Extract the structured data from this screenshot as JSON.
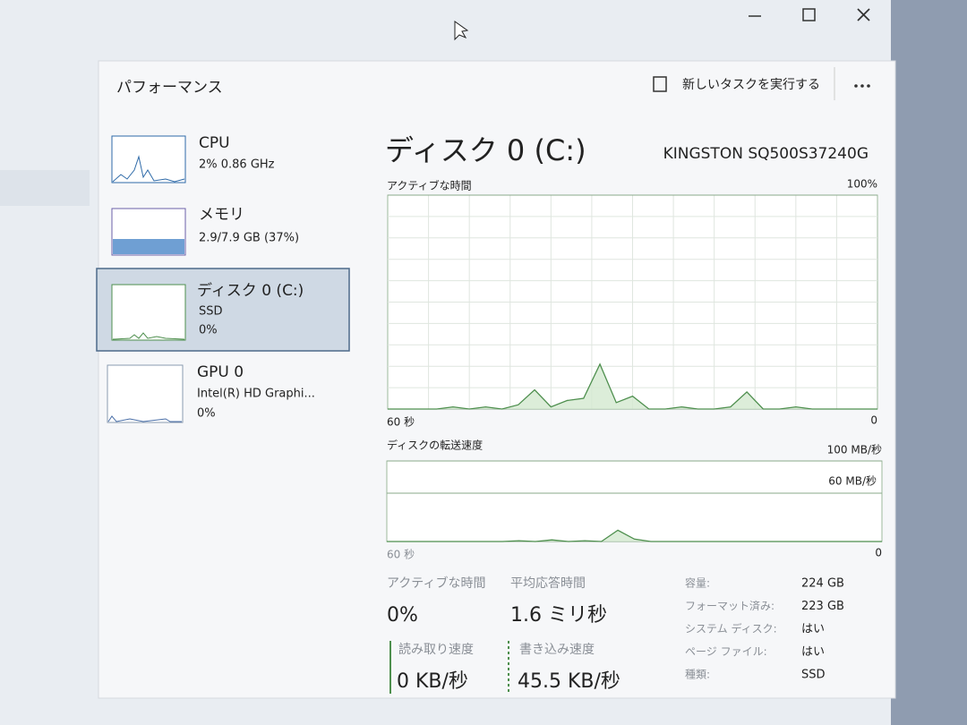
{
  "header": {
    "title": "パフォーマンス",
    "run_task": "新しいタスクを実行する"
  },
  "sidebar": [
    {
      "name": "CPU",
      "detail": "2% 0.86 GHz"
    },
    {
      "name": "メモリ",
      "detail": "2.9/7.9 GB (37%)"
    },
    {
      "name": "ディスク 0 (C:)",
      "detail": "SSD",
      "detail2": "0%"
    },
    {
      "name": "GPU 0",
      "detail": "Intel(R) HD Graphi...",
      "detail2": "0%"
    }
  ],
  "main": {
    "title": "ディスク 0 (C:)",
    "model": "KINGSTON SQ500S37240G",
    "active_chart": {
      "label": "アクティブな時間",
      "time_label": "60 秒",
      "ylim": [
        0,
        100
      ],
      "yticks": [
        {
          "value": 0,
          "label": "0"
        },
        {
          "value": 100,
          "label": "100%"
        }
      ],
      "color": "#4e8f4e",
      "values": [
        0,
        0,
        0,
        0,
        1,
        0,
        1,
        0,
        2,
        9,
        1,
        4,
        5,
        21,
        3,
        6,
        0,
        0,
        1,
        0,
        0,
        1,
        8,
        0,
        0,
        1,
        0,
        0,
        0,
        0,
        0
      ]
    },
    "transfer_chart": {
      "label": "ディスクの転送速度",
      "time_label": "60 秒",
      "ylim": [
        0,
        100
      ],
      "yticks": [
        {
          "value": 0,
          "label": "0"
        },
        {
          "value": 60,
          "label": "60 MB/秒"
        },
        {
          "value": 100,
          "label": "100 MB/秒"
        }
      ],
      "color": "#4e8f4e",
      "values": [
        0,
        0,
        0,
        0,
        0,
        0,
        0,
        0,
        1,
        0,
        2,
        0,
        1,
        0,
        14,
        3,
        0,
        0,
        0,
        0,
        0,
        0,
        0,
        0,
        0,
        0,
        0,
        0,
        0,
        0,
        0
      ]
    },
    "stats": {
      "active_label": "アクティブな時間",
      "active_value": "0%",
      "response_label": "平均応答時間",
      "response_value": "1.6 ミリ秒",
      "read_label": "読み取り速度",
      "read_value": "0 KB/秒",
      "write_label": "書き込み速度",
      "write_value": "45.5 KB/秒"
    },
    "properties": [
      {
        "label": "容量:",
        "value": "224 GB"
      },
      {
        "label": "フォーマット済み:",
        "value": "223 GB"
      },
      {
        "label": "システム ディスク:",
        "value": "はい"
      },
      {
        "label": "ページ ファイル:",
        "value": "はい"
      },
      {
        "label": "種類:",
        "value": "SSD"
      }
    ]
  }
}
